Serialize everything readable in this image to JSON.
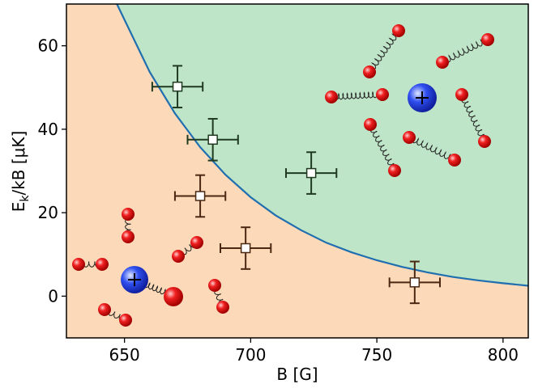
{
  "chart_data": {
    "type": "scatter",
    "xlabel": "B [G]",
    "ylabel": {
      "main": "E",
      "sub": "k",
      "rest": "/kB [μK]"
    },
    "xlim": [
      627,
      810
    ],
    "ylim": [
      -10,
      70
    ],
    "xticks": [
      650,
      700,
      750,
      800
    ],
    "yticks": [
      0,
      20,
      40,
      60
    ],
    "regions": {
      "above_color": "#bfe5c8",
      "below_color": "#fcd9b8"
    },
    "curve": {
      "color": "#1f6fb0",
      "x": [
        647,
        660,
        670,
        680,
        690,
        700,
        710,
        720,
        730,
        740,
        750,
        760,
        770,
        780,
        790,
        800,
        810
      ],
      "values": [
        70,
        53.7,
        43.8,
        35.7,
        29.1,
        23.7,
        19.3,
        15.8,
        12.8,
        10.5,
        8.6,
        7.0,
        5.7,
        4.6,
        3.8,
        3.1,
        2.5
      ]
    },
    "series": [
      {
        "color": "#1f3a1f",
        "x": [
          671,
          685,
          724
        ],
        "values": [
          50.2,
          37.5,
          29.5
        ],
        "xerr": [
          10,
          10,
          10
        ],
        "yerr": [
          5,
          5,
          5
        ]
      },
      {
        "color": "#4a2812",
        "x": [
          680,
          698,
          765
        ],
        "values": [
          24,
          11.5,
          3.3
        ],
        "xerr": [
          10,
          10,
          10
        ],
        "yerr": [
          5,
          5,
          5
        ]
      }
    ]
  }
}
